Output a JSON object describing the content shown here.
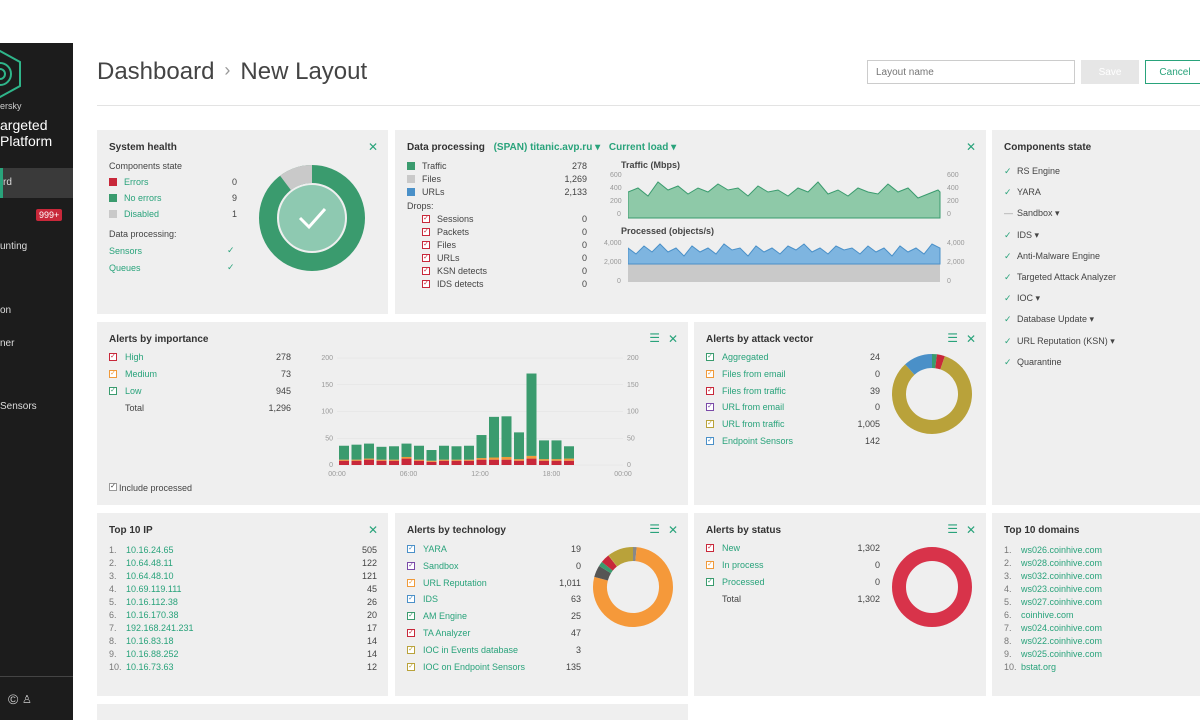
{
  "sidebar": {
    "brand": "ersky",
    "product_line1": "argeted",
    "product_line2": "Platform",
    "items": [
      {
        "label": "rd"
      },
      {
        "label": "unting"
      },
      {
        "label": "on"
      },
      {
        "label": "ner"
      },
      {
        "label": "Sensors"
      }
    ],
    "badge": "999+"
  },
  "header": {
    "breadcrumb_root": "Dashboard",
    "breadcrumb_current": "New Layout",
    "layout_placeholder": "Layout name",
    "save_label": "Save",
    "cancel_label": "Cancel"
  },
  "system_health": {
    "title": "System health",
    "components_label": "Components state",
    "rows": [
      {
        "label": "Errors",
        "value": "0",
        "color": "#c8283a"
      },
      {
        "label": "No errors",
        "value": "9",
        "color": "#3a9b6e"
      },
      {
        "label": "Disabled",
        "value": "1",
        "color": "#c9c9c9"
      }
    ],
    "processing_label": "Data processing:",
    "processing": [
      {
        "label": "Sensors"
      },
      {
        "label": "Queues"
      }
    ]
  },
  "data_processing": {
    "title": "Data processing",
    "source": "(SPAN) titanic.avp.ru",
    "mode": "Current load",
    "legend": [
      {
        "label": "Traffic",
        "value": "278",
        "color": "#3a9b6e"
      },
      {
        "label": "Files",
        "value": "1,269",
        "color": "#c9c9c9"
      },
      {
        "label": "URLs",
        "value": "2,133",
        "color": "#4a90c8"
      }
    ],
    "drops_label": "Drops:",
    "drops": [
      {
        "label": "Sessions",
        "value": "0"
      },
      {
        "label": "Packets",
        "value": "0"
      },
      {
        "label": "Files",
        "value": "0"
      },
      {
        "label": "URLs",
        "value": "0"
      },
      {
        "label": "KSN detects",
        "value": "0"
      },
      {
        "label": "IDS detects",
        "value": "0"
      }
    ],
    "traffic_title": "Traffic (Mbps)",
    "traffic_ticks": [
      "600",
      "400",
      "200",
      "0"
    ],
    "processed_title": "Processed (objects/s)",
    "processed_ticks": [
      "4,000",
      "2,000",
      "0"
    ]
  },
  "components_state": {
    "title": "Components state",
    "items": [
      {
        "label": "RS Engine",
        "mark": "✓"
      },
      {
        "label": "YARA",
        "mark": "✓"
      },
      {
        "label": "Sandbox ▾",
        "mark": "—"
      },
      {
        "label": "IDS ▾",
        "mark": "✓"
      },
      {
        "label": "Anti-Malware Engine",
        "mark": "✓"
      },
      {
        "label": "Targeted Attack Analyzer",
        "mark": "✓"
      },
      {
        "label": "IOC ▾",
        "mark": "✓"
      },
      {
        "label": "Database Update ▾",
        "mark": "✓"
      },
      {
        "label": "URL Reputation (KSN) ▾",
        "mark": "✓"
      },
      {
        "label": "Quarantine",
        "mark": "✓"
      }
    ]
  },
  "alerts_importance": {
    "title": "Alerts by importance",
    "rows": [
      {
        "label": "High",
        "value": "278",
        "color": "#c8283a"
      },
      {
        "label": "Medium",
        "value": "73",
        "color": "#f09a3a"
      },
      {
        "label": "Low",
        "value": "945",
        "color": "#3a9b6e"
      }
    ],
    "total_label": "Total",
    "total_value": "1,296",
    "include_label": "Include processed",
    "y_ticks": [
      "200",
      "150",
      "100",
      "50",
      "0"
    ],
    "x_ticks": [
      "00:00",
      "06:00",
      "12:00",
      "18:00",
      "00:00"
    ]
  },
  "chart_data": {
    "type": "bar",
    "title": "Alerts by importance",
    "ylim": [
      0,
      200
    ],
    "xlabel": "",
    "ylabel": "",
    "categories": [
      "00:00",
      "",
      "",
      "",
      "",
      "",
      "06:00",
      "",
      "",
      "",
      "",
      "",
      "12:00",
      "",
      "",
      "",
      "",
      "",
      "18:00"
    ],
    "series": [
      {
        "name": "High",
        "values": [
          8,
          8,
          10,
          8,
          8,
          12,
          8,
          6,
          8,
          8,
          8,
          10,
          10,
          10,
          8,
          12,
          8,
          8,
          8
        ]
      },
      {
        "name": "Medium",
        "values": [
          2,
          2,
          2,
          2,
          2,
          3,
          2,
          2,
          2,
          2,
          2,
          3,
          4,
          5,
          3,
          5,
          3,
          3,
          4
        ]
      },
      {
        "name": "Low",
        "values": [
          26,
          28,
          28,
          24,
          25,
          25,
          26,
          20,
          26,
          25,
          26,
          43,
          76,
          76,
          50,
          154,
          35,
          35,
          23
        ]
      }
    ]
  },
  "alerts_vector": {
    "title": "Alerts by attack vector",
    "rows": [
      {
        "label": "Aggregated",
        "value": "24",
        "color": "#3a9b6e"
      },
      {
        "label": "Files from email",
        "value": "0",
        "color": "#f09a3a"
      },
      {
        "label": "Files from traffic",
        "value": "39",
        "color": "#c8283a"
      },
      {
        "label": "URL from email",
        "value": "0",
        "color": "#7a4aa8"
      },
      {
        "label": "URL from traffic",
        "value": "1,005",
        "color": "#b9a23a"
      },
      {
        "label": "Endpoint Sensors",
        "value": "142",
        "color": "#4a90c8"
      }
    ]
  },
  "top_ip": {
    "title": "Top 10 IP",
    "rows": [
      {
        "n": "1.",
        "ip": "10.16.24.65",
        "v": "505"
      },
      {
        "n": "2.",
        "ip": "10.64.48.11",
        "v": "122"
      },
      {
        "n": "3.",
        "ip": "10.64.48.10",
        "v": "121"
      },
      {
        "n": "4.",
        "ip": "10.69.119.111",
        "v": "45"
      },
      {
        "n": "5.",
        "ip": "10.16.112.38",
        "v": "26"
      },
      {
        "n": "6.",
        "ip": "10.16.170.38",
        "v": "20"
      },
      {
        "n": "7.",
        "ip": "192.168.241.231",
        "v": "17"
      },
      {
        "n": "8.",
        "ip": "10.16.83.18",
        "v": "14"
      },
      {
        "n": "9.",
        "ip": "10.16.88.252",
        "v": "14"
      },
      {
        "n": "10.",
        "ip": "10.16.73.63",
        "v": "12"
      }
    ]
  },
  "alerts_technology": {
    "title": "Alerts by technology",
    "rows": [
      {
        "label": "YARA",
        "value": "19",
        "color": "#4a90c8"
      },
      {
        "label": "Sandbox",
        "value": "0",
        "color": "#7a4aa8"
      },
      {
        "label": "URL Reputation",
        "value": "1,011",
        "color": "#f09a3a"
      },
      {
        "label": "IDS",
        "value": "63",
        "color": "#4a90c8"
      },
      {
        "label": "AM Engine",
        "value": "25",
        "color": "#3a9b6e"
      },
      {
        "label": "TA Analyzer",
        "value": "47",
        "color": "#c8283a"
      },
      {
        "label": "IOC in Events database",
        "value": "3",
        "color": "#b9a23a"
      },
      {
        "label": "IOC on Endpoint Sensors",
        "value": "135",
        "color": "#b9a23a"
      }
    ]
  },
  "alerts_status": {
    "title": "Alerts by status",
    "rows": [
      {
        "label": "New",
        "value": "1,302",
        "color": "#c8283a"
      },
      {
        "label": "In process",
        "value": "0",
        "color": "#f09a3a"
      },
      {
        "label": "Processed",
        "value": "0",
        "color": "#3a9b6e"
      }
    ],
    "total_label": "Total",
    "total_value": "1,302"
  },
  "top_domains": {
    "title": "Top 10 domains",
    "rows": [
      {
        "n": "1.",
        "d": "ws026.coinhive.com"
      },
      {
        "n": "2.",
        "d": "ws028.coinhive.com"
      },
      {
        "n": "3.",
        "d": "ws032.coinhive.com"
      },
      {
        "n": "4.",
        "d": "ws023.coinhive.com"
      },
      {
        "n": "5.",
        "d": "ws027.coinhive.com"
      },
      {
        "n": "6.",
        "d": "coinhive.com"
      },
      {
        "n": "7.",
        "d": "ws024.coinhive.com"
      },
      {
        "n": "8.",
        "d": "ws022.coinhive.com"
      },
      {
        "n": "9.",
        "d": "ws025.coinhive.com"
      },
      {
        "n": "10.",
        "d": "bstat.org"
      }
    ]
  }
}
